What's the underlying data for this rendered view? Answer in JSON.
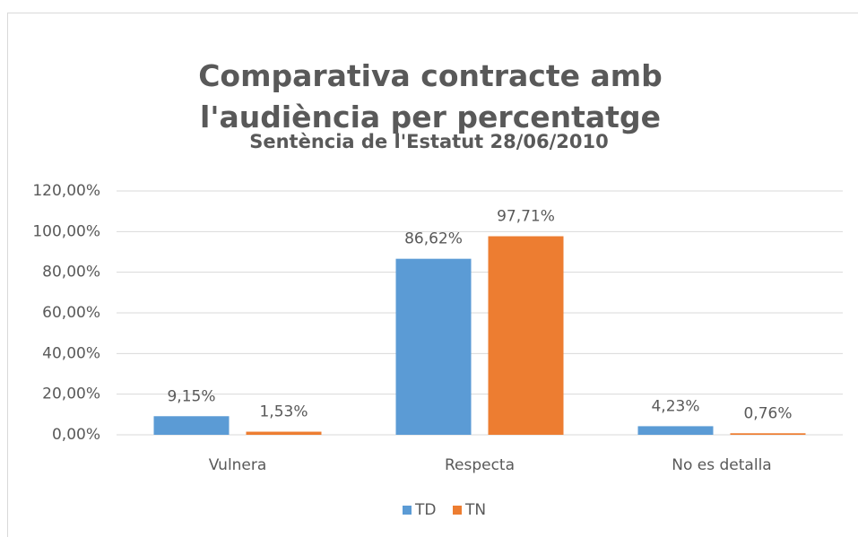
{
  "chart_data": {
    "type": "bar",
    "title": "Comparativa contracte amb l'audiència per percentatge",
    "subtitle": "Sentència de l'Estatut 28/06/2010",
    "categories": [
      "Vulnera",
      "Respecta",
      "No es detalla"
    ],
    "series": [
      {
        "name": "TD",
        "color": "#5b9bd5",
        "values": [
          9.15,
          86.62,
          4.23
        ],
        "value_labels": [
          "9,15%",
          "86,62%",
          "4,23%"
        ]
      },
      {
        "name": "TN",
        "color": "#ed7d31",
        "values": [
          1.53,
          97.71,
          0.76
        ],
        "value_labels": [
          "1,53%",
          "97,71%",
          "0,76%"
        ]
      }
    ],
    "ylim": [
      0,
      120
    ],
    "yticks": [
      {
        "value": 0,
        "label": "0,00%"
      },
      {
        "value": 20,
        "label": "20,00%"
      },
      {
        "value": 40,
        "label": "40,00%"
      },
      {
        "value": 60,
        "label": "60,00%"
      },
      {
        "value": 80,
        "label": "80,00%"
      },
      {
        "value": 100,
        "label": "100,00%"
      },
      {
        "value": 120,
        "label": "120,00%"
      }
    ],
    "grid": true,
    "legend": "bottom"
  }
}
